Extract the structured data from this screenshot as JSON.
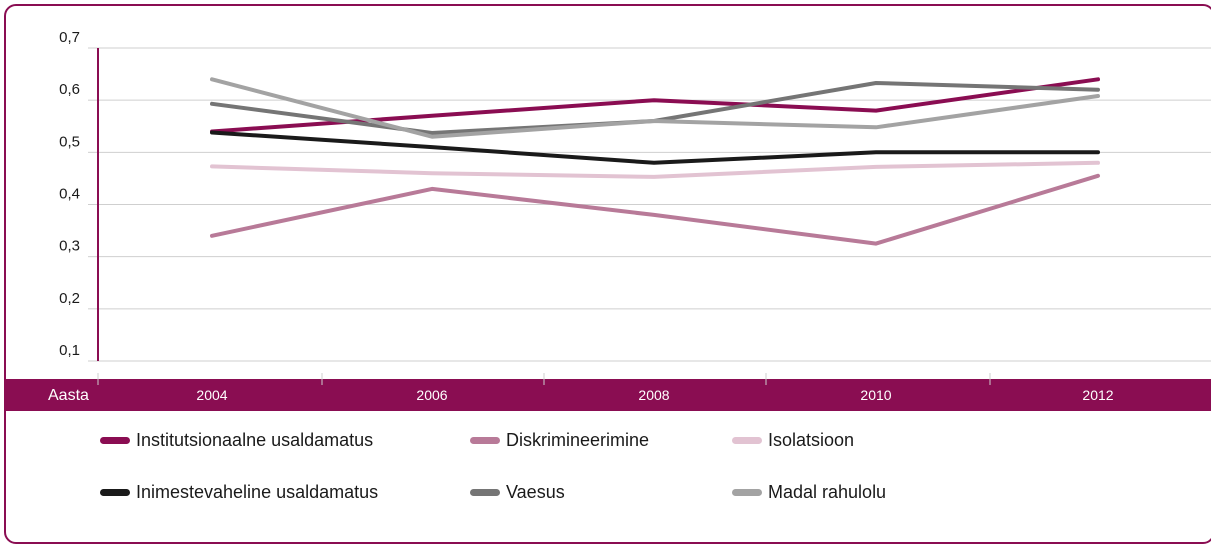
{
  "chart_data": {
    "type": "line",
    "xlabel": "Aasta",
    "categories": [
      "2004",
      "2006",
      "2008",
      "2010",
      "2012"
    ],
    "y_ticks": [
      "0,1",
      "0,2",
      "0,3",
      "0,4",
      "0,5",
      "0,6",
      "0,7"
    ],
    "ylim": [
      0.1,
      0.7
    ],
    "grid": true,
    "legend_position": "bottom",
    "series": [
      {
        "name": "Institutsionaalne usaldamatus",
        "color": "#8a0d52",
        "values": [
          0.54,
          0.57,
          0.6,
          0.58,
          0.64
        ]
      },
      {
        "name": "Diskrimineerimine",
        "color": "#b87a98",
        "values": [
          0.34,
          0.43,
          0.38,
          0.325,
          0.455
        ]
      },
      {
        "name": "Isolatsioon",
        "color": "#e2c3d2",
        "values": [
          0.473,
          0.46,
          0.453,
          0.472,
          0.48
        ]
      },
      {
        "name": "Inimestevaheline usaldamatus",
        "color": "#1a1a1a",
        "values": [
          0.538,
          0.51,
          0.48,
          0.5,
          0.5
        ]
      },
      {
        "name": "Vaesus",
        "color": "#757575",
        "values": [
          0.593,
          0.537,
          0.56,
          0.633,
          0.62
        ]
      },
      {
        "name": "Madal rahulolu",
        "color": "#a3a3a3",
        "values": [
          0.64,
          0.53,
          0.56,
          0.548,
          0.608
        ]
      }
    ]
  }
}
